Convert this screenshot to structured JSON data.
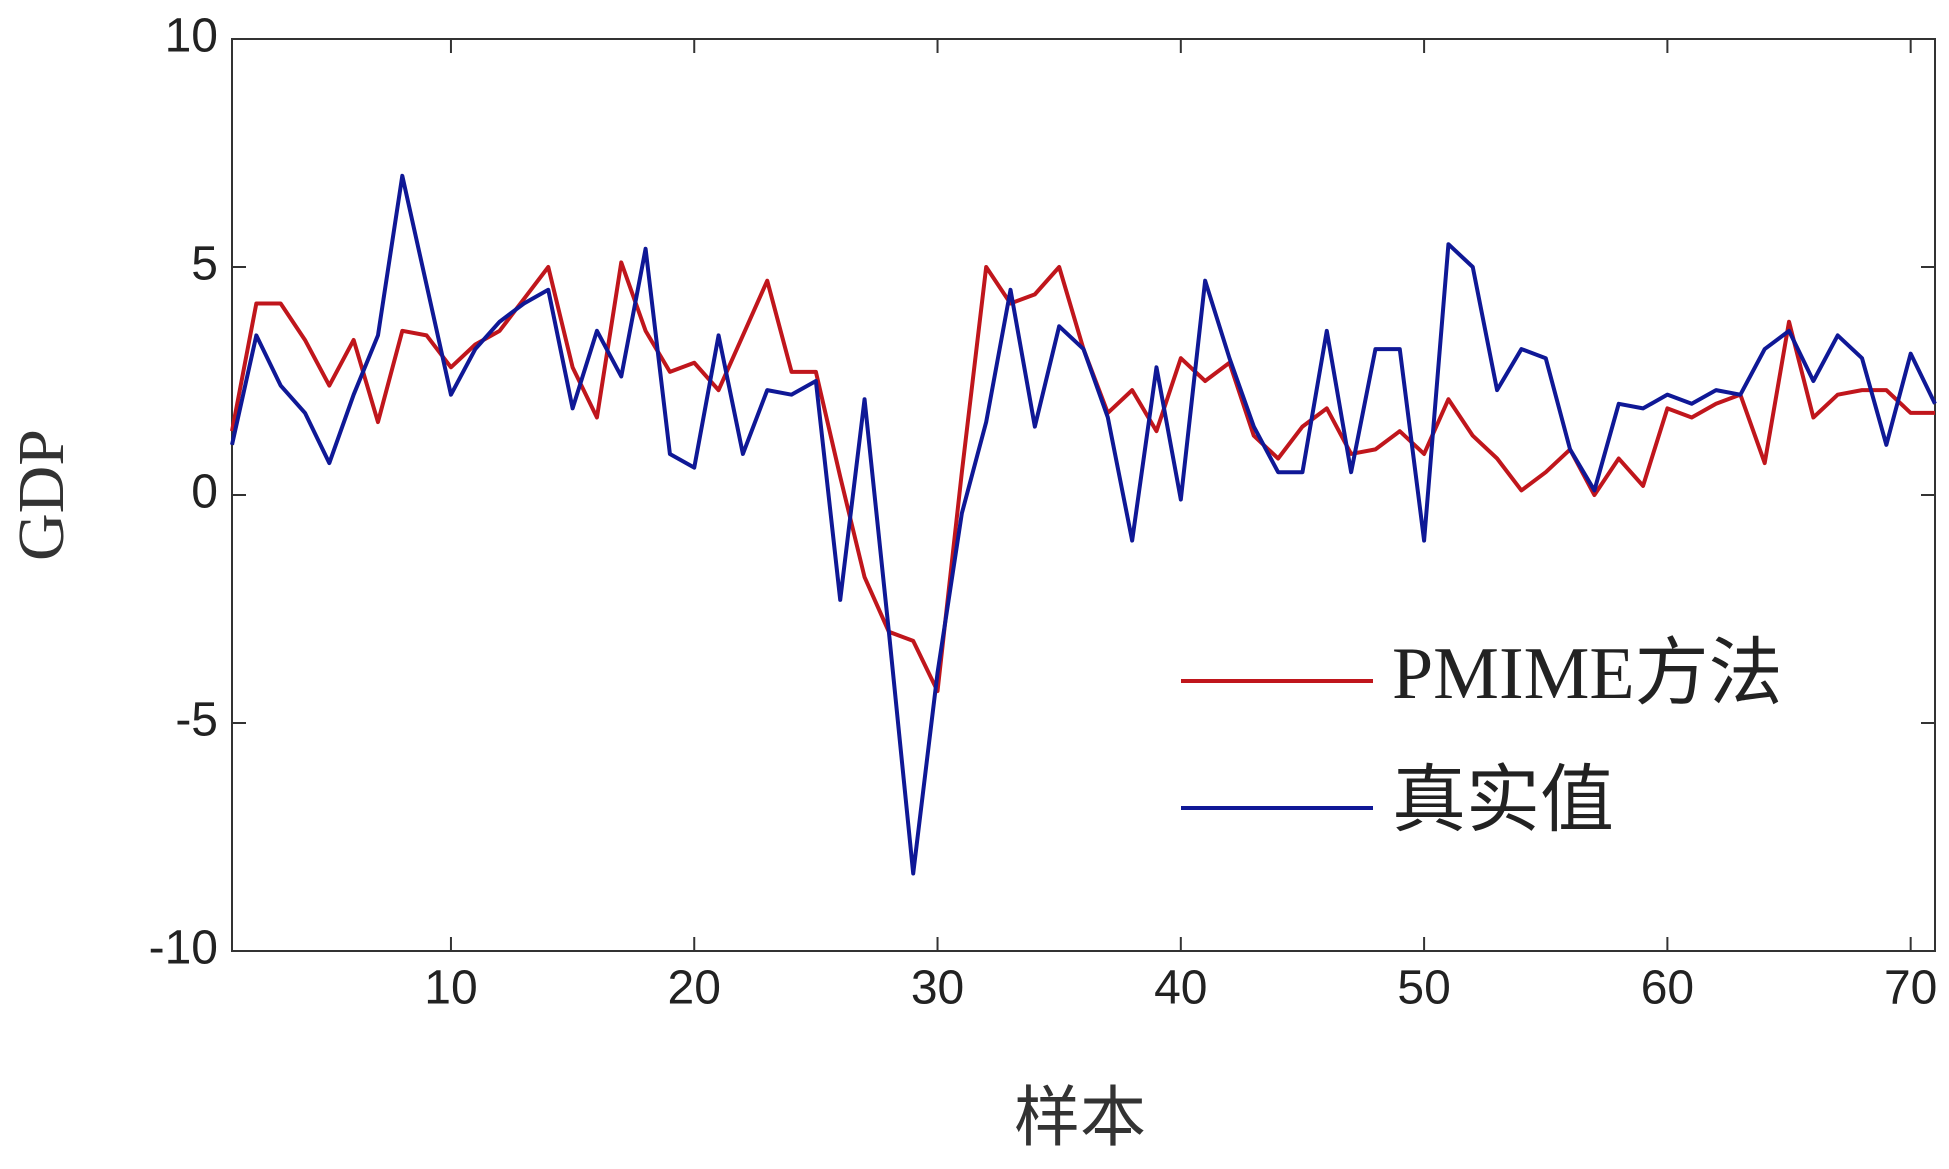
{
  "chart_data": {
    "type": "line",
    "xlabel": "样本",
    "ylabel": "GDP",
    "x": [
      1,
      2,
      3,
      4,
      5,
      6,
      7,
      8,
      9,
      10,
      11,
      12,
      13,
      14,
      15,
      16,
      17,
      18,
      19,
      20,
      21,
      22,
      23,
      24,
      25,
      26,
      27,
      28,
      29,
      30,
      31,
      32,
      33,
      34,
      35,
      36,
      37,
      38,
      39,
      40,
      41,
      42,
      43,
      44,
      45,
      46,
      47,
      48,
      49,
      50,
      51,
      52,
      53,
      54,
      55,
      56,
      57,
      58,
      59,
      60,
      61,
      62,
      63,
      64,
      65,
      66,
      67,
      68,
      69,
      70,
      71
    ],
    "series": [
      {
        "name": "PMIME方法",
        "color": "#c0161c",
        "values": [
          1.4,
          4.2,
          4.2,
          3.4,
          2.4,
          3.4,
          1.6,
          3.6,
          3.5,
          2.8,
          3.3,
          3.6,
          4.3,
          5.0,
          2.8,
          1.7,
          5.1,
          3.6,
          2.7,
          2.9,
          2.3,
          3.5,
          4.7,
          2.7,
          2.7,
          0.4,
          -1.8,
          -3.0,
          -3.2,
          -4.3,
          0.5,
          5.0,
          4.2,
          4.4,
          5.0,
          3.2,
          1.8,
          2.3,
          1.4,
          3.0,
          2.5,
          2.9,
          1.3,
          0.8,
          1.5,
          1.9,
          0.9,
          1.0,
          1.4,
          0.9,
          2.1,
          1.3,
          0.8,
          0.1,
          0.5,
          1.0,
          0.0,
          0.8,
          0.2,
          1.9,
          1.7,
          2.0,
          2.2,
          0.7,
          3.8,
          1.7,
          2.2,
          2.3,
          2.3,
          1.8,
          1.8
        ]
      },
      {
        "name": "真实值",
        "color": "#0f1896",
        "values": [
          1.1,
          3.5,
          2.4,
          1.8,
          0.7,
          2.2,
          3.5,
          7.0,
          4.6,
          2.2,
          3.2,
          3.8,
          4.2,
          4.5,
          1.9,
          3.6,
          2.6,
          5.4,
          0.9,
          0.6,
          3.5,
          0.9,
          2.3,
          2.2,
          2.5,
          -2.3,
          2.1,
          -3.0,
          -8.3,
          -3.9,
          -0.4,
          1.6,
          4.5,
          1.5,
          3.7,
          3.2,
          1.7,
          -1.0,
          2.8,
          -0.1,
          4.7,
          3.0,
          1.5,
          0.5,
          0.5,
          3.6,
          0.5,
          3.2,
          3.2,
          -1.0,
          5.5,
          5.0,
          2.3,
          3.2,
          3.0,
          1.0,
          0.1,
          2.0,
          1.9,
          2.2,
          2.0,
          2.3,
          2.2,
          3.2,
          3.6,
          2.5,
          3.5,
          3.0,
          1.1,
          3.1,
          2.0
        ]
      }
    ],
    "xlim": [
      1,
      71
    ],
    "xticks": [
      10,
      20,
      30,
      40,
      50,
      60,
      70
    ],
    "ylim": [
      -10,
      10
    ],
    "yticks": [
      -10,
      -5,
      0,
      5,
      10
    ],
    "grid": false,
    "legend": "lower right"
  }
}
